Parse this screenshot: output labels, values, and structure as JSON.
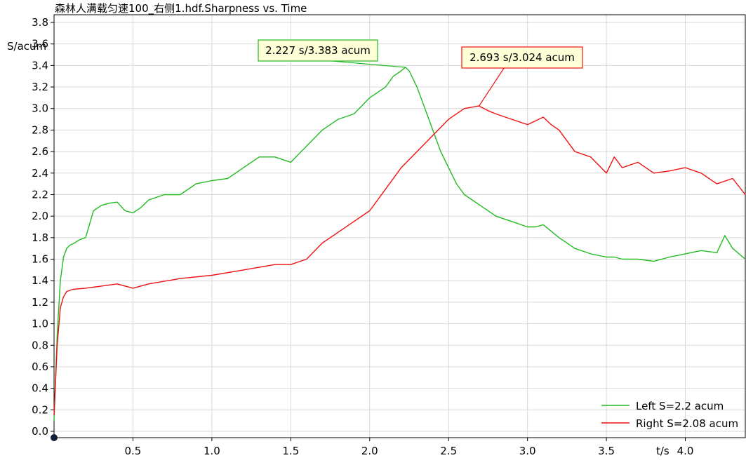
{
  "chart_data": {
    "type": "line",
    "title": "森林人满载匀速100_右侧1.hdf.Sharpness vs. Time",
    "xlabel": "t/s",
    "ylabel": "S/acum",
    "xlim": [
      0,
      4.38
    ],
    "ylim": [
      0,
      3.8
    ],
    "xticks": [
      "0.5",
      "1.0",
      "1.5",
      "2.0",
      "2.5",
      "3.0",
      "3.5",
      "4.0"
    ],
    "yticks": [
      "0.0",
      "0.2",
      "0.4",
      "0.6",
      "0.8",
      "1.0",
      "1.2",
      "1.4",
      "1.6",
      "1.8",
      "2.0",
      "2.2",
      "2.4",
      "2.6",
      "2.8",
      "3.0",
      "3.2",
      "3.4",
      "3.6",
      "3.8"
    ],
    "grid": true,
    "legend_position": "bottom-right",
    "series": [
      {
        "name": "Left S=2.2 acum",
        "color": "#22bb22",
        "x": [
          0.0,
          0.02,
          0.04,
          0.06,
          0.08,
          0.1,
          0.13,
          0.16,
          0.2,
          0.25,
          0.3,
          0.35,
          0.4,
          0.45,
          0.5,
          0.55,
          0.6,
          0.7,
          0.8,
          0.9,
          1.0,
          1.1,
          1.2,
          1.3,
          1.4,
          1.5,
          1.6,
          1.7,
          1.8,
          1.9,
          2.0,
          2.1,
          2.15,
          2.2,
          2.227,
          2.25,
          2.3,
          2.35,
          2.4,
          2.45,
          2.5,
          2.55,
          2.6,
          2.7,
          2.8,
          2.9,
          3.0,
          3.05,
          3.1,
          3.2,
          3.3,
          3.4,
          3.5,
          3.55,
          3.6,
          3.7,
          3.8,
          3.9,
          4.0,
          4.1,
          4.2,
          4.25,
          4.3,
          4.38
        ],
        "y": [
          0.1,
          0.9,
          1.4,
          1.62,
          1.7,
          1.73,
          1.75,
          1.78,
          1.8,
          2.05,
          2.1,
          2.12,
          2.13,
          2.05,
          2.03,
          2.08,
          2.15,
          2.2,
          2.2,
          2.3,
          2.33,
          2.35,
          2.45,
          2.55,
          2.55,
          2.5,
          2.65,
          2.8,
          2.9,
          2.95,
          3.1,
          3.2,
          3.3,
          3.35,
          3.383,
          3.35,
          3.2,
          3.0,
          2.8,
          2.6,
          2.45,
          2.3,
          2.2,
          2.1,
          2.0,
          1.95,
          1.9,
          1.9,
          1.92,
          1.8,
          1.7,
          1.65,
          1.62,
          1.62,
          1.6,
          1.6,
          1.58,
          1.62,
          1.65,
          1.68,
          1.66,
          1.82,
          1.7,
          1.6
        ]
      },
      {
        "name": "Right S=2.08 acum",
        "color": "#ee1111",
        "x": [
          0.0,
          0.02,
          0.04,
          0.06,
          0.08,
          0.12,
          0.2,
          0.3,
          0.4,
          0.5,
          0.6,
          0.8,
          1.0,
          1.2,
          1.4,
          1.5,
          1.6,
          1.7,
          1.8,
          1.9,
          2.0,
          2.1,
          2.2,
          2.3,
          2.4,
          2.5,
          2.6,
          2.693,
          2.75,
          2.8,
          2.9,
          3.0,
          3.1,
          3.15,
          3.2,
          3.3,
          3.4,
          3.5,
          3.55,
          3.6,
          3.7,
          3.8,
          3.9,
          4.0,
          4.1,
          4.2,
          4.3,
          4.38
        ],
        "y": [
          0.15,
          0.8,
          1.15,
          1.25,
          1.3,
          1.32,
          1.33,
          1.35,
          1.37,
          1.33,
          1.37,
          1.42,
          1.45,
          1.5,
          1.55,
          1.55,
          1.6,
          1.75,
          1.85,
          1.95,
          2.05,
          2.25,
          2.45,
          2.6,
          2.75,
          2.9,
          3.0,
          3.024,
          2.98,
          2.95,
          2.9,
          2.85,
          2.92,
          2.85,
          2.8,
          2.6,
          2.55,
          2.4,
          2.55,
          2.45,
          2.5,
          2.4,
          2.42,
          2.45,
          2.4,
          2.3,
          2.35,
          2.2
        ]
      }
    ],
    "annotations": [
      {
        "text": "2.227 s/3.383 acum",
        "x": 2.227,
        "y": 3.383,
        "border": "#22bb22",
        "bg": "#ffffd8"
      },
      {
        "text": "2.693 s/3.024 acum",
        "x": 2.693,
        "y": 3.024,
        "border": "#ee1111",
        "bg": "#ffffd8"
      }
    ]
  }
}
